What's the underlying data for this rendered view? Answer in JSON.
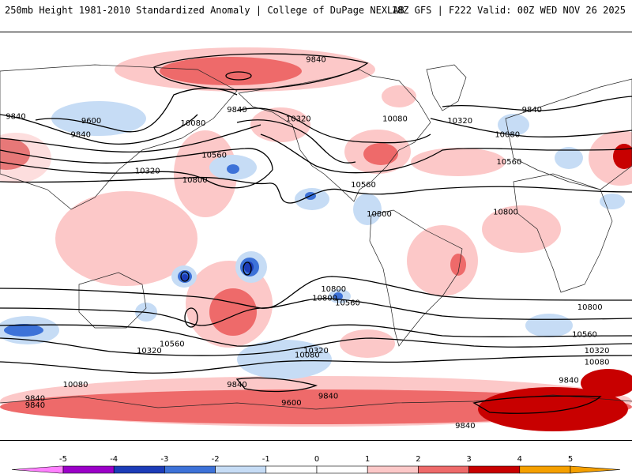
{
  "header": {
    "title": "250mb Height 1981-2010 Standardized Anomaly | College of DuPage NEXLAB",
    "valid": "18Z GFS | F222 Valid: 00Z WED NOV 26 2025"
  },
  "colors": {
    "blue": [
      "#ff80ff",
      "#9b00c8",
      "#1c3cb8",
      "#3d72d8",
      "#c6dcf5"
    ],
    "red": [
      "#fcc8c8",
      "#ee6a6a",
      "#c80000",
      "#f5a000"
    ],
    "neutral": "#ffffff"
  },
  "contour_labels": [
    {
      "text": "9840",
      "lon": -180,
      "lat": 78
    },
    {
      "text": "9840",
      "lon": 135,
      "lat": 56
    },
    {
      "text": "9840",
      "lon": 9,
      "lat": 53
    },
    {
      "text": "9600",
      "lon": 52,
      "lat": 51
    },
    {
      "text": "9840",
      "lon": 46,
      "lat": 45
    },
    {
      "text": "10080",
      "lon": 110,
      "lat": 50
    },
    {
      "text": "10560",
      "lon": 122,
      "lat": 36
    },
    {
      "text": "10320",
      "lon": 84,
      "lat": 29
    },
    {
      "text": "10800",
      "lon": 111,
      "lat": 25
    },
    {
      "text": "10320",
      "lon": 170,
      "lat": 52
    },
    {
      "text": "10080",
      "lon": -135,
      "lat": 52
    },
    {
      "text": "10560",
      "lon": -153,
      "lat": 23
    },
    {
      "text": "10800",
      "lon": -144,
      "lat": 10
    },
    {
      "text": "10320",
      "lon": -98,
      "lat": 51
    },
    {
      "text": "10080",
      "lon": -71,
      "lat": 45
    },
    {
      "text": "10560",
      "lon": -70,
      "lat": 33
    },
    {
      "text": "10800",
      "lon": -72,
      "lat": 11
    },
    {
      "text": "9840",
      "lon": -57,
      "lat": 56
    },
    {
      "text": "10800",
      "lon": 185,
      "lat": -27
    },
    {
      "text": "10800",
      "lon": -170,
      "lat": -23
    },
    {
      "text": "10560",
      "lon": -162,
      "lat": -29
    },
    {
      "text": "10560",
      "lon": 98,
      "lat": -47
    },
    {
      "text": "10320",
      "lon": 85,
      "lat": -50
    },
    {
      "text": "10320",
      "lon": -180,
      "lat": -50
    },
    {
      "text": "10080",
      "lon": -185,
      "lat": -52
    },
    {
      "text": "10800",
      "lon": -24,
      "lat": -31
    },
    {
      "text": "10560",
      "lon": -27,
      "lat": -43
    },
    {
      "text": "10320",
      "lon": -20,
      "lat": -50
    },
    {
      "text": "10080",
      "lon": -20,
      "lat": -55
    },
    {
      "text": "9840",
      "lon": -36,
      "lat": -63
    },
    {
      "text": "9840",
      "lon": 135,
      "lat": -65
    },
    {
      "text": "9840",
      "lon": 187,
      "lat": -70
    },
    {
      "text": "9600",
      "lon": 166,
      "lat": -73
    },
    {
      "text": "10080",
      "lon": 43,
      "lat": -65
    },
    {
      "text": "9840",
      "lon": 20,
      "lat": -71
    },
    {
      "text": "9840",
      "lon": 20,
      "lat": -74
    },
    {
      "text": "9840",
      "lon": -95,
      "lat": -83
    }
  ],
  "colorbar": {
    "ticks": [
      "-5",
      "-4",
      "-3",
      "-2",
      "-1",
      "0",
      "1",
      "2",
      "3",
      "4",
      "5"
    ]
  }
}
